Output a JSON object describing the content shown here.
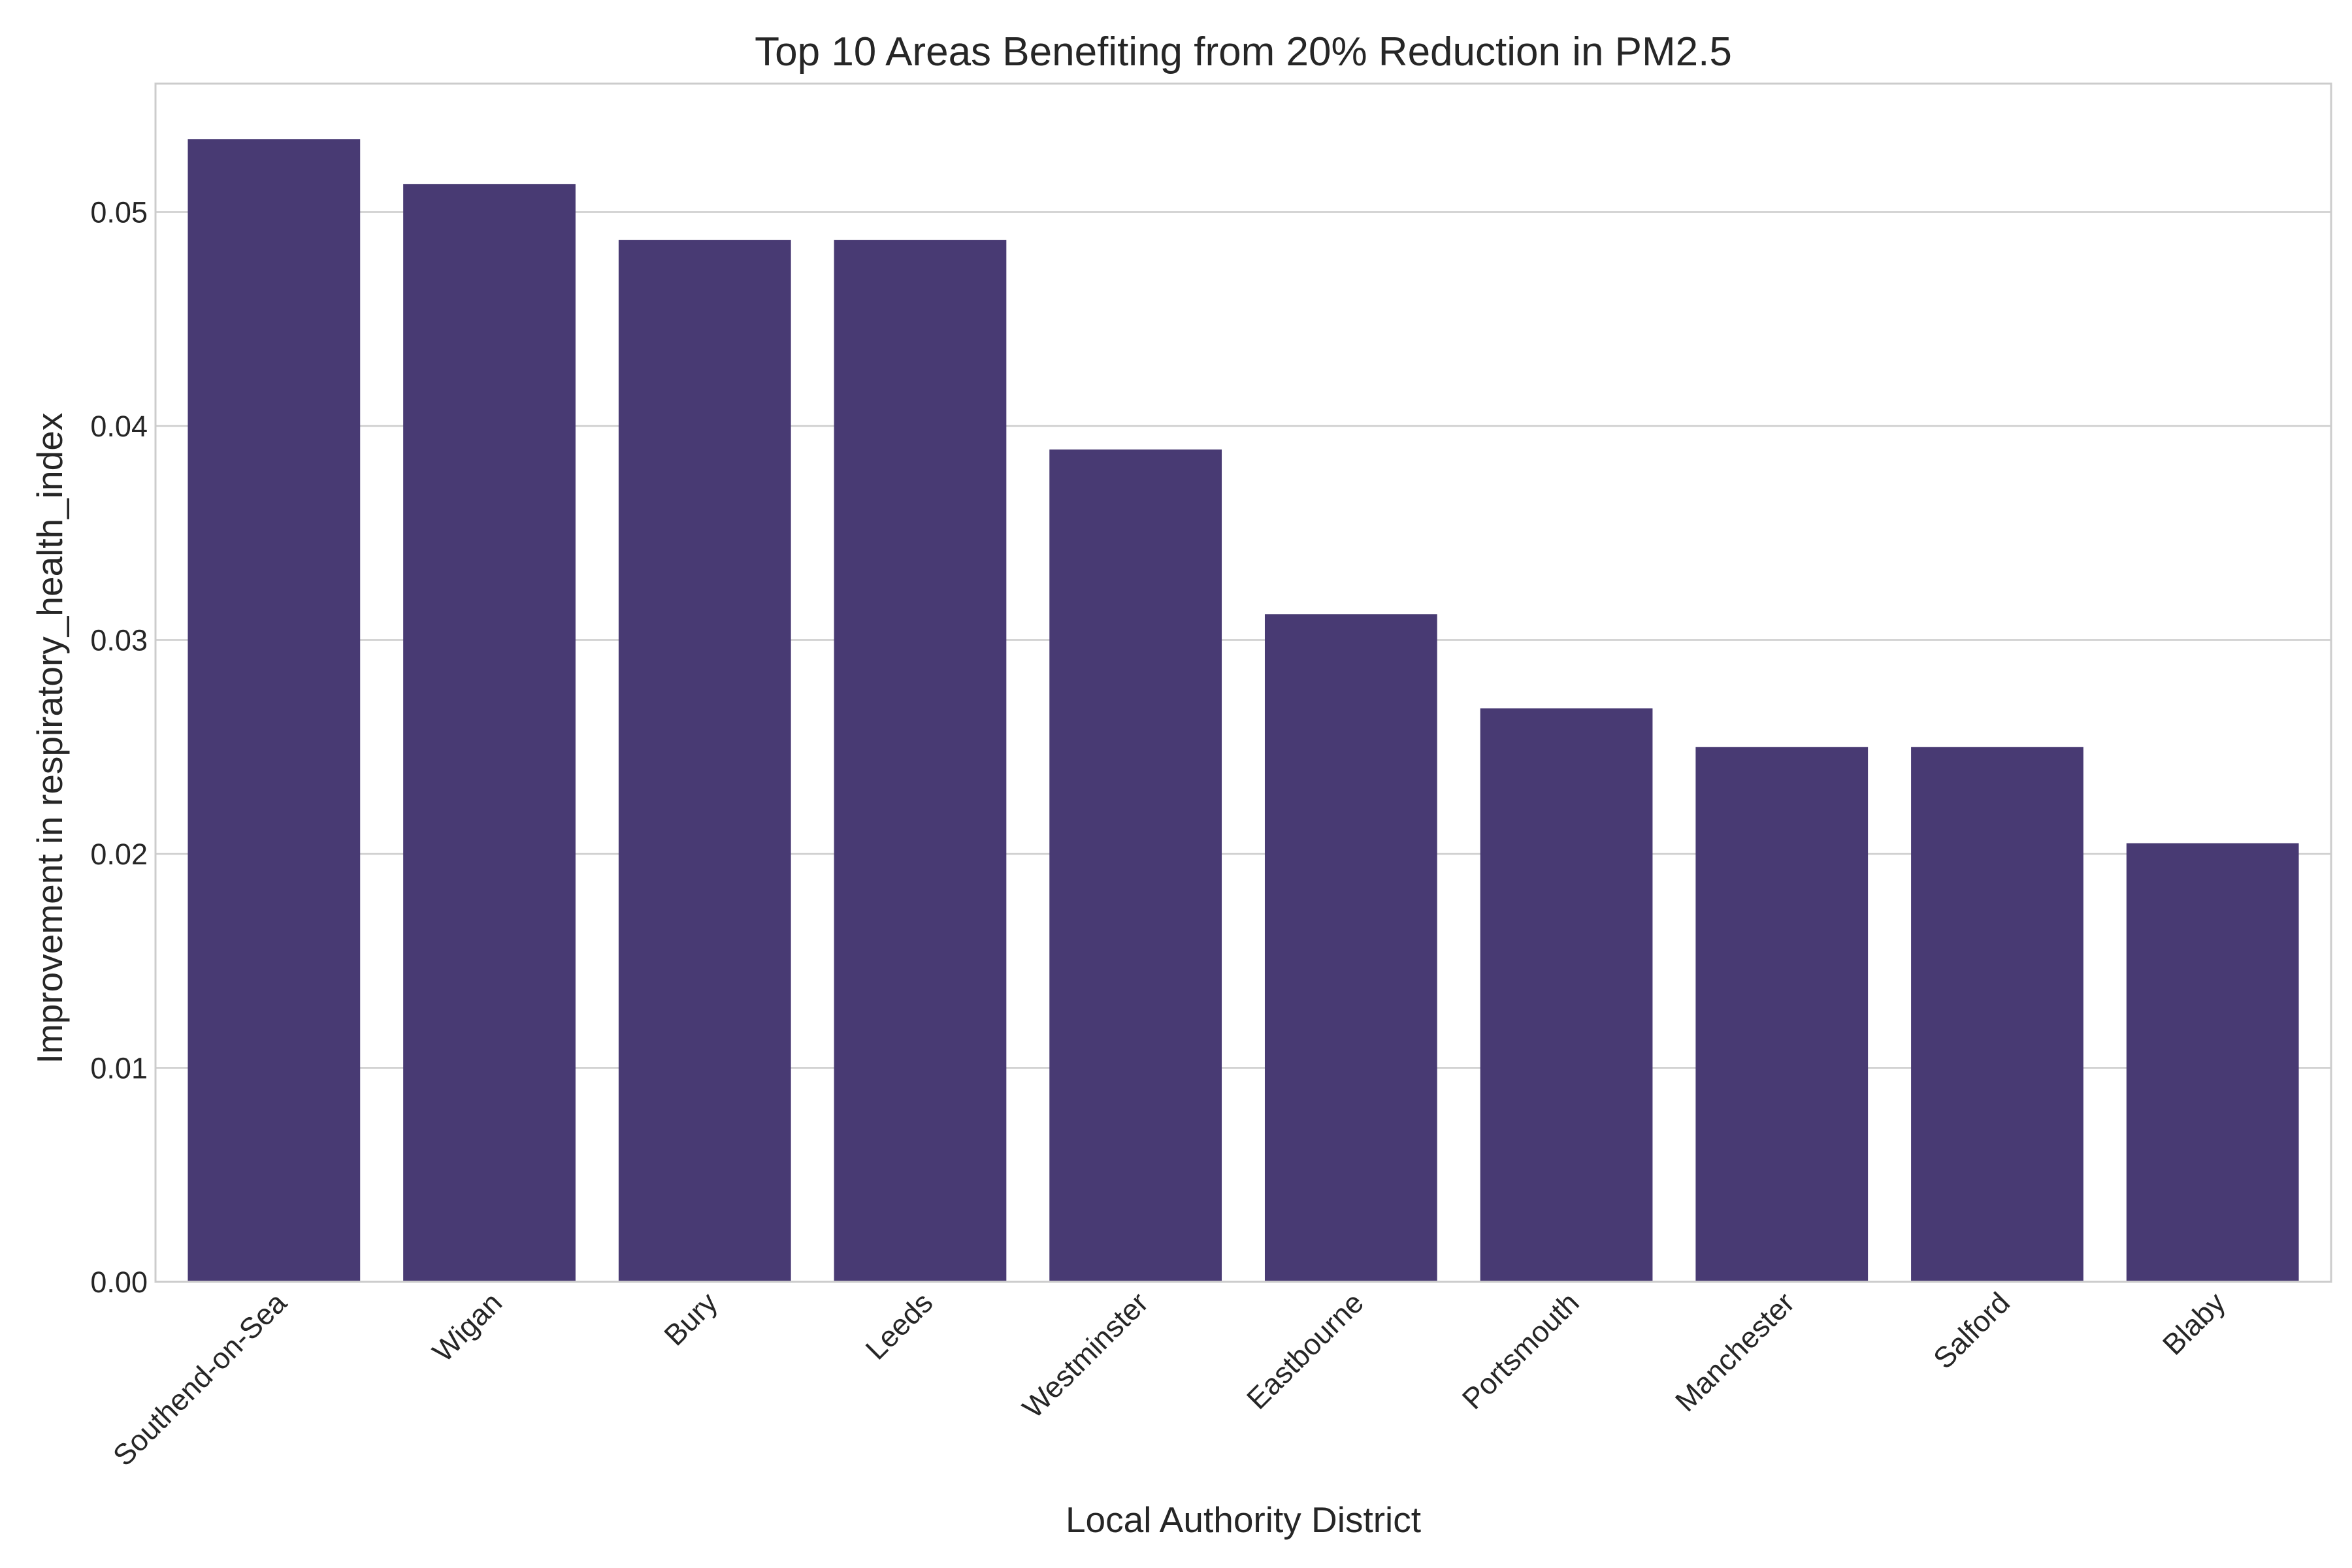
{
  "chart_data": {
    "type": "bar",
    "title": "Top 10 Areas Benefiting from 20% Reduction in PM2.5",
    "xlabel": "Local Authority District",
    "ylabel": "Improvement in respiratory_health_index",
    "categories": [
      "Southend-on-Sea",
      "Wigan",
      "Bury",
      "Leeds",
      "Westminster",
      "Eastbourne",
      "Portsmouth",
      "Manchester",
      "Salford",
      "Blaby"
    ],
    "values": [
      0.0534,
      0.0513,
      0.0487,
      0.0487,
      0.0389,
      0.0312,
      0.0268,
      0.025,
      0.025,
      0.0205
    ],
    "ylim": [
      0,
      0.056
    ],
    "yticks": [
      "0.00",
      "0.01",
      "0.02",
      "0.03",
      "0.04",
      "0.05"
    ],
    "grid": true,
    "bar_color": "#483a73"
  }
}
